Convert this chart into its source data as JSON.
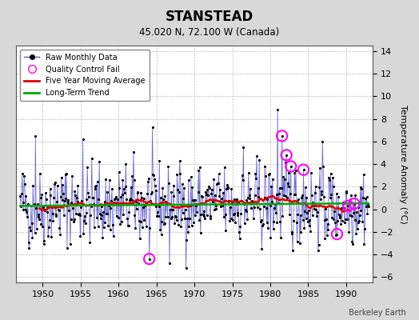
{
  "title": "STANSTEAD",
  "subtitle": "45.020 N, 72.100 W (Canada)",
  "ylabel": "Temperature Anomaly (°C)",
  "credit": "Berkeley Earth",
  "xlim": [
    1946.5,
    1993.5
  ],
  "ylim": [
    -6.5,
    14.5
  ],
  "yticks": [
    -6,
    -4,
    -2,
    0,
    2,
    4,
    6,
    8,
    10,
    12,
    14
  ],
  "xticks": [
    1950,
    1955,
    1960,
    1965,
    1970,
    1975,
    1980,
    1985,
    1990
  ],
  "bg_color": "#d8d8d8",
  "plot_bg_color": "#ffffff",
  "raw_line_color": "#5555cc",
  "raw_dot_color": "#000000",
  "moving_avg_color": "#dd0000",
  "trend_color": "#00aa00",
  "qc_fail_color": "#ff00ff",
  "legend_labels": [
    "Raw Monthly Data",
    "Quality Control Fail",
    "Five Year Moving Average",
    "Long-Term Trend"
  ],
  "seed": 42
}
